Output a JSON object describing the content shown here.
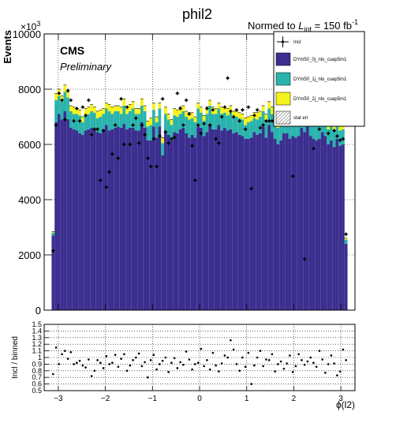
{
  "chart_data": [
    {
      "type": "bar",
      "title": "phil2",
      "lumi_text_prefix": "Normed to ",
      "lumi_symbol": "L",
      "lumi_subscript": "int",
      "lumi_value": " = 150 fb",
      "lumi_superscript": "-1",
      "cms_label": "CMS",
      "preliminary_label": "Preliminary",
      "ylabel": "Events",
      "y_exponent_base": "×10",
      "y_exponent_power": "3",
      "xlim": [
        -3.3,
        3.3
      ],
      "ylim": [
        0,
        10000
      ],
      "yticks": [
        "0",
        "2000",
        "4000",
        "6000",
        "8000",
        "10000"
      ],
      "grid": true,
      "legend_position": "top-right",
      "legend": [
        {
          "label": "Incl",
          "kind": "marker"
        },
        {
          "label": "DYm50_0j_nlo_cuap5m1",
          "kind": "fill",
          "color": "#3b2e8f"
        },
        {
          "label": "DYm50_1j_nlo_cuap5m1",
          "kind": "fill",
          "color": "#2ab3ad"
        },
        {
          "label": "DYm50_2j_nlo_cuap5m1",
          "kind": "fill",
          "color": "#f6f21c"
        },
        {
          "label": "stat err",
          "kind": "hatch"
        }
      ],
      "colors": {
        "dy0j": "#3b2e8f",
        "dy1j": "#2ab3ad",
        "dy2j": "#f6f21c"
      },
      "bin_edges": [
        -3.1416,
        3.1416
      ],
      "series": [
        {
          "name": "DYm50_0j_nlo_cuap5m1",
          "values": [
            2700,
            6800,
            7100,
            6900,
            7200,
            6900,
            6600,
            6550,
            6500,
            6400,
            6350,
            6500,
            6550,
            6600,
            6550,
            6450,
            6400,
            6550,
            6700,
            6500,
            6550,
            6600,
            6650,
            6600,
            6750,
            6550,
            6600,
            6600,
            6500,
            6500,
            6800,
            6600,
            6150,
            6150,
            6650,
            6250,
            6650,
            5600,
            6500,
            6350,
            6150,
            6450,
            6400,
            6550,
            6600,
            6400,
            6250,
            6350,
            6250,
            6650,
            6600,
            6300,
            6450,
            6750,
            6550,
            6550,
            6700,
            6500,
            6600,
            6500,
            6550,
            6400,
            6450,
            6350,
            6300,
            6200,
            6200,
            6250,
            6450,
            6350,
            6400,
            6650,
            6250,
            6700,
            6450,
            6200,
            6000,
            6150,
            6400,
            6400,
            6200,
            6300,
            6250,
            6300,
            6600,
            6450,
            6800,
            6300,
            6200,
            6150,
            6200,
            6450,
            6300,
            6000,
            6150,
            5900,
            6200,
            5950,
            6000,
            2400
          ]
        },
        {
          "name": "DYm50_1j_nlo_cuap5m1",
          "values": [
            100,
            800,
            650,
            650,
            700,
            800,
            600,
            550,
            600,
            650,
            450,
            550,
            550,
            600,
            600,
            500,
            600,
            550,
            600,
            700,
            550,
            600,
            550,
            500,
            650,
            550,
            600,
            700,
            600,
            600,
            600,
            600,
            500,
            550,
            600,
            550,
            650,
            450,
            600,
            550,
            550,
            600,
            600,
            550,
            600,
            600,
            650,
            600,
            550,
            650,
            550,
            550,
            650,
            650,
            550,
            550,
            600,
            600,
            550,
            550,
            600,
            600,
            550,
            600,
            600,
            500,
            600,
            600,
            500,
            550,
            600,
            550,
            600,
            600,
            650,
            550,
            600,
            550,
            600,
            600,
            550,
            550,
            650,
            600,
            600,
            650,
            550,
            650,
            600,
            600,
            650,
            600,
            550,
            550,
            600,
            600,
            550,
            550,
            550,
            150
          ]
        },
        {
          "name": "DYm50_2j_nlo_cuap5m1",
          "values": [
            50,
            250,
            250,
            200,
            250,
            200,
            200,
            250,
            200,
            200,
            200,
            250,
            250,
            250,
            200,
            250,
            250,
            200,
            200,
            250,
            250,
            200,
            200,
            250,
            250,
            250,
            250,
            250,
            200,
            200,
            250,
            200,
            200,
            250,
            250,
            200,
            200,
            200,
            250,
            200,
            200,
            250,
            250,
            250,
            200,
            200,
            250,
            200,
            200,
            200,
            200,
            200,
            250,
            200,
            250,
            200,
            200,
            250,
            200,
            250,
            250,
            200,
            200,
            200,
            200,
            250,
            200,
            200,
            200,
            250,
            200,
            200,
            250,
            250,
            250,
            200,
            200,
            250,
            200,
            200,
            200,
            250,
            200,
            250,
            200,
            200,
            250,
            200,
            200,
            200,
            250,
            200,
            250,
            200,
            250,
            200,
            200,
            200,
            200,
            50
          ]
        },
        {
          "name": "Incl",
          "values": [
            2150,
            6700,
            7850,
            7600,
            6900,
            7950,
            7600,
            6850,
            7300,
            6850,
            7350,
            7050,
            7600,
            6350,
            6550,
            6550,
            4700,
            6500,
            4450,
            5000,
            5650,
            6700,
            5500,
            7650,
            6000,
            7350,
            6000,
            6700,
            6950,
            6050,
            6700,
            6350,
            5500,
            5200,
            6200,
            5200,
            6300,
            7650,
            6450,
            6050,
            6200,
            6250,
            7850,
            7300,
            6700,
            7600,
            7100,
            5950,
            4700,
            6700,
            6400,
            6750,
            7300,
            6700,
            7250,
            6200,
            6050,
            7000,
            7350,
            8400,
            7200,
            7000,
            7250,
            6850,
            7250,
            6550,
            7350,
            4400,
            7050,
            7250,
            6600,
            6700,
            6850,
            6850,
            6850,
            7000,
            7050,
            7250,
            6750,
            6850,
            6900,
            4850,
            7350,
            7300,
            7450,
            1850,
            7400,
            7600,
            5850,
            7250,
            6550,
            7450,
            6900,
            6400,
            6900,
            6500,
            6300,
            6150,
            6200,
            2750
          ]
        }
      ]
    },
    {
      "type": "scatter",
      "xlabel": "ϕ(l2)",
      "ylabel": "Incl / binned",
      "xlim": [
        -3.3,
        3.3
      ],
      "ylim": [
        0.5,
        1.5
      ],
      "xticks": [
        "−3",
        "−2",
        "−1",
        "0",
        "1",
        "2",
        "3"
      ],
      "yticks": [
        "0.5",
        "0.6",
        "0.7",
        "0.8",
        "0.9",
        "1",
        "1.1",
        "1.2",
        "1.3",
        "1.4",
        "1.5"
      ],
      "grid": true,
      "values": [
        0.75,
        1.15,
        0.9,
        1.05,
        1.1,
        0.98,
        1.08,
        0.9,
        0.92,
        0.95,
        0.88,
        0.85,
        0.97,
        0.72,
        0.8,
        0.96,
        0.92,
        0.84,
        1.02,
        0.9,
        0.92,
        1.04,
        0.86,
        0.98,
        1.05,
        0.8,
        0.88,
        0.96,
        1.0,
        1.06,
        0.87,
        0.93,
        0.7,
        0.96,
        1.04,
        0.82,
        0.9,
        0.95,
        1.0,
        0.78,
        0.92,
        0.99,
        0.84,
        0.93,
        0.89,
        1.09,
        0.97,
        0.82,
        0.9,
        0.92,
        1.13,
        0.87,
        0.96,
        0.82,
        1.07,
        0.88,
        0.79,
        0.91,
        1.03,
        1.0,
        1.26,
        1.12,
        0.9,
        0.8,
        1.0,
        0.86,
        1.07,
        0.6,
        0.88,
        1.0,
        1.1,
        0.87,
        0.97,
        0.96,
        1.05,
        0.79,
        0.9,
        0.94,
        0.83,
        0.91,
        1.03,
        0.78,
        0.87,
        1.05,
        0.96,
        0.89,
        0.94,
        1.0,
        0.92,
        0.86,
        1.1,
        0.97,
        0.77,
        0.9,
        1.03,
        0.91,
        0.73,
        0.79,
        1.12,
        0.96
      ]
    }
  ]
}
